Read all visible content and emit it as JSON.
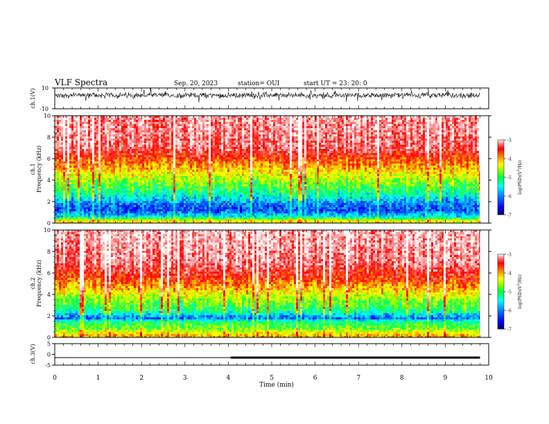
{
  "header": {
    "title": "VLF Spectra",
    "date": "Sep. 20, 2023",
    "station": "station= OUI",
    "start": "start UT =   23: 20: 0"
  },
  "colors": {
    "colormap": [
      "#00007a",
      "#0000ff",
      "#0080ff",
      "#00ffff",
      "#00ff60",
      "#a0ff00",
      "#ffff00",
      "#ff8000",
      "#ff0000",
      "#ff8888",
      "#ffffff"
    ],
    "waveform": "#000000"
  },
  "chart_data": [
    {
      "type": "line",
      "panel": "ch1-waveform",
      "ylabel": "ch.1(V)",
      "ylim": [
        -10,
        10
      ],
      "y_ticklabels": [
        "10",
        "-10"
      ],
      "x": [
        0,
        9.8
      ],
      "description_of_signal": "noisy waveform around +3 V",
      "mean_level": 3,
      "noise_amplitude": 2
    },
    {
      "type": "heatmap",
      "panel": "ch1-spectrogram",
      "ylabel": "ch.1\nFrequency (kHz)",
      "ylim": [
        0,
        10
      ],
      "y_ticks": [
        0,
        2,
        4,
        6,
        8,
        10
      ],
      "xlim": [
        0,
        9.8
      ],
      "colorbar": {
        "label": "log(PSD)(V²/Hz)",
        "range": [
          -7,
          -3
        ],
        "ticks": [
          -7,
          -6,
          -5,
          -4,
          -3
        ]
      },
      "profile": [
        {
          "freq_khz": 0.2,
          "logpsd": -4.6
        },
        {
          "freq_khz": 0.6,
          "logpsd": -5.8
        },
        {
          "freq_khz": 1.2,
          "logpsd": -6.4
        },
        {
          "freq_khz": 1.8,
          "logpsd": -6.2
        },
        {
          "freq_khz": 2.5,
          "logpsd": -5.7
        },
        {
          "freq_khz": 3.5,
          "logpsd": -5.2
        },
        {
          "freq_khz": 4.5,
          "logpsd": -4.7
        },
        {
          "freq_khz": 5.5,
          "logpsd": -4.2
        },
        {
          "freq_khz": 7.0,
          "logpsd": -3.5
        },
        {
          "freq_khz": 10.0,
          "logpsd": -3.3
        }
      ]
    },
    {
      "type": "heatmap",
      "panel": "ch2-spectrogram",
      "ylabel": "ch.2\nFrequency (kHz)",
      "ylim": [
        0,
        10
      ],
      "y_ticks": [
        0,
        2,
        4,
        6,
        8,
        10
      ],
      "xlim": [
        0,
        9.8
      ],
      "colorbar": {
        "label": "log(PSD)(V²/Hz)",
        "range": [
          -7,
          -3
        ],
        "ticks": [
          -7,
          -6,
          -5,
          -4,
          -3
        ]
      },
      "profile": [
        {
          "freq_khz": 0.2,
          "logpsd": -4.4
        },
        {
          "freq_khz": 0.8,
          "logpsd": -5.1
        },
        {
          "freq_khz": 1.5,
          "logpsd": -5.5
        },
        {
          "freq_khz": 1.8,
          "logpsd": -6.3
        },
        {
          "freq_khz": 2.5,
          "logpsd": -5.4
        },
        {
          "freq_khz": 3.5,
          "logpsd": -5.0
        },
        {
          "freq_khz": 4.5,
          "logpsd": -4.4
        },
        {
          "freq_khz": 5.5,
          "logpsd": -3.9
        },
        {
          "freq_khz": 7.0,
          "logpsd": -3.4
        },
        {
          "freq_khz": 10.0,
          "logpsd": -3.2
        }
      ]
    },
    {
      "type": "line",
      "panel": "ch3-level",
      "ylabel": "ch.3(V)",
      "ylim": [
        -5,
        5
      ],
      "y_ticks": [
        -5,
        0,
        5
      ],
      "segments": [
        {
          "x": [
            0,
            4.05
          ],
          "y": -1.5,
          "weight": "thin"
        },
        {
          "x": [
            4.05,
            9.8
          ],
          "y": -1.5,
          "weight": "thick"
        }
      ]
    }
  ],
  "x_axis": {
    "label": "Time (min)",
    "ticks": [
      0,
      1,
      2,
      3,
      4,
      5,
      6,
      7,
      8,
      9,
      10
    ],
    "tick_labels": [
      "0",
      "1",
      "2",
      "3",
      "4",
      "5",
      "6",
      "7",
      "8",
      "9",
      "10"
    ],
    "xlim": [
      0,
      10
    ],
    "data_end": 9.8
  }
}
